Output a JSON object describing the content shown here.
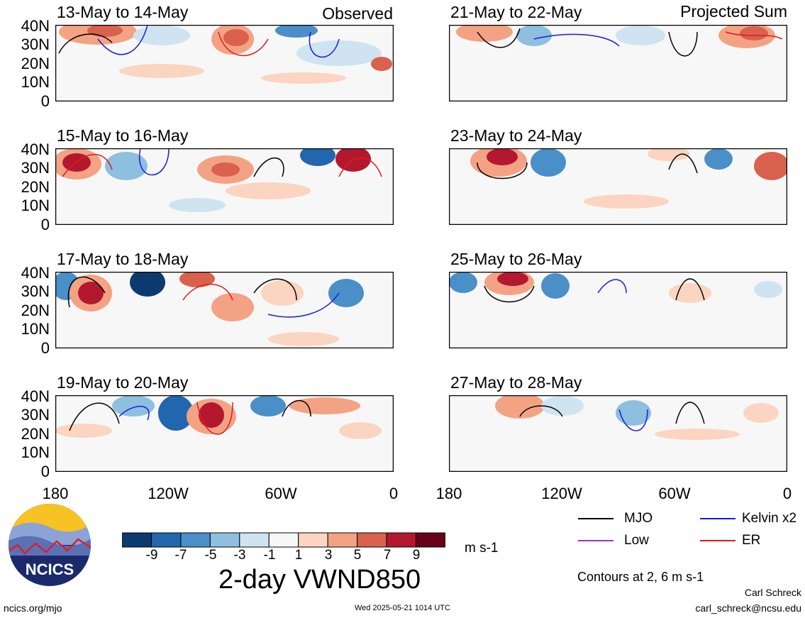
{
  "left_header_label": "Observed",
  "right_header_label": "Projected Sum",
  "left_panels": [
    {
      "date_range": "13-May to 14-May"
    },
    {
      "date_range": "15-May to 16-May"
    },
    {
      "date_range": "17-May to 18-May"
    },
    {
      "date_range": "19-May to 20-May"
    }
  ],
  "right_panels": [
    {
      "date_range": "21-May to 22-May"
    },
    {
      "date_range": "23-May to 24-May"
    },
    {
      "date_range": "25-May to 26-May"
    },
    {
      "date_range": "27-May to 28-May"
    }
  ],
  "lat_ticks": [
    "40N",
    "30N",
    "20N",
    "10N",
    "0"
  ],
  "lon_ticks": [
    "180",
    "120W",
    "60W",
    "0"
  ],
  "colorbar": {
    "tick_labels": [
      "-9",
      "-7",
      "-5",
      "-3",
      "-1",
      "1",
      "3",
      "5",
      "7",
      "9"
    ],
    "units": "m s-1",
    "colors": [
      "#0b3a6e",
      "#2266ae",
      "#4a8fc8",
      "#8ebfdf",
      "#cfe3f0",
      "#f7f7f7",
      "#fbd5c1",
      "#f3a384",
      "#d9614d",
      "#b4182e",
      "#6a001a"
    ]
  },
  "variable_title": "2-day VWND850",
  "legend": [
    {
      "label": "MJO",
      "color": "#000000"
    },
    {
      "label": "Kelvin x2",
      "color": "#1a1adf"
    },
    {
      "label": "Low",
      "color": "#9b30d9"
    },
    {
      "label": "ER",
      "color": "#e01b1b"
    }
  ],
  "contours_note": "Contours at 2, 6 m s-1",
  "logo_text": "NCICS",
  "website": "ncics.org/mjo",
  "timestamp": "Wed 2025-05-21 1014 UTC",
  "author_name": "Carl Schreck",
  "author_email": "carl_schreck@ncsu.edu"
}
